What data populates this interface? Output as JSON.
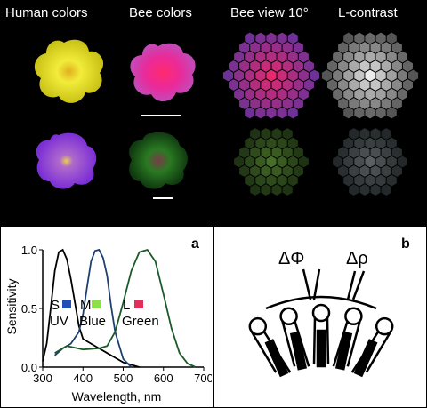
{
  "top": {
    "headers": [
      "Human colors",
      "Bee colors",
      "Bee view 10°",
      "L-contrast"
    ]
  },
  "panel_a": {
    "label": "a"
  },
  "panel_b": {
    "label": "b",
    "delta_phi": "ΔΦ",
    "delta_rho": "Δρ"
  },
  "chart_data": {
    "type": "line",
    "xlabel": "Wavelength, nm",
    "ylabel": "Sensitivity",
    "xlim": [
      300,
      700
    ],
    "ylim": [
      0,
      1.0
    ],
    "xticks": [
      300,
      400,
      500,
      600,
      700
    ],
    "yticks": [
      0.0,
      0.5,
      1.0
    ],
    "legend": [
      {
        "letter": "S",
        "name": "UV",
        "color": "#1f4fb4"
      },
      {
        "letter": "M",
        "name": "Blue",
        "color": "#8de04a"
      },
      {
        "letter": "L",
        "name": "Green",
        "color": "#e0305a"
      }
    ],
    "series": [
      {
        "color": "#000000",
        "x": [
          300,
          310,
          320,
          330,
          340,
          350,
          360,
          370,
          380,
          390,
          400,
          420,
          440,
          460,
          480,
          500,
          520,
          540
        ],
        "y": [
          0.05,
          0.2,
          0.5,
          0.82,
          0.98,
          1.0,
          0.92,
          0.75,
          0.55,
          0.35,
          0.24,
          0.2,
          0.16,
          0.12,
          0.08,
          0.04,
          0.02,
          0.0
        ]
      },
      {
        "color": "#1f3f6f",
        "x": [
          330,
          350,
          370,
          390,
          400,
          410,
          420,
          430,
          440,
          450,
          460,
          470,
          480,
          500,
          520
        ],
        "y": [
          0.1,
          0.16,
          0.2,
          0.3,
          0.45,
          0.68,
          0.9,
          0.99,
          1.0,
          0.93,
          0.78,
          0.52,
          0.3,
          0.07,
          0.0
        ]
      },
      {
        "color": "#1a5a2a",
        "x": [
          330,
          360,
          400,
          440,
          460,
          480,
          500,
          520,
          540,
          560,
          580,
          600,
          620,
          640,
          660,
          680
        ],
        "y": [
          0.12,
          0.18,
          0.15,
          0.16,
          0.18,
          0.3,
          0.55,
          0.82,
          0.98,
          1.0,
          0.9,
          0.62,
          0.33,
          0.12,
          0.03,
          0.0
        ]
      }
    ]
  }
}
